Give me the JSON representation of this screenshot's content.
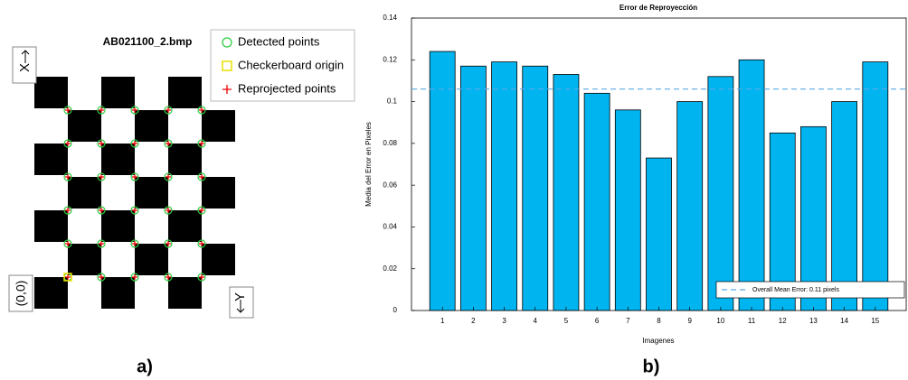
{
  "image_panel": {
    "title": "AB021100_2.bmp",
    "legend": [
      "Detected points",
      "Checkerboard origin",
      "Reprojected points"
    ],
    "x_axis": "X",
    "y_axis": "Y",
    "origin": "(0,0)"
  },
  "panel_labels": [
    "a)",
    "b)"
  ],
  "chart_data": {
    "type": "bar",
    "title": "Error de Reproyección",
    "x_label": "Imagenes",
    "y_label": "Media del Error en Pixeles",
    "categories": [
      "1",
      "2",
      "3",
      "4",
      "5",
      "6",
      "7",
      "8",
      "9",
      "10",
      "11",
      "12",
      "13",
      "14",
      "15"
    ],
    "values": [
      0.124,
      0.117,
      0.119,
      0.117,
      0.113,
      0.104,
      0.096,
      0.073,
      0.1,
      0.112,
      0.12,
      0.085,
      0.088,
      0.1,
      0.119
    ],
    "color": "#00b4f0",
    "mean_value": 0.106,
    "mean_label": "Overall Mean Error: 0.11 pixels",
    "mean_color": "#5aa9e6",
    "ylim": [
      0,
      0.14
    ],
    "yticks": [
      0,
      0.02,
      0.04,
      0.06,
      0.08,
      0.1,
      0.12,
      0.14
    ]
  }
}
